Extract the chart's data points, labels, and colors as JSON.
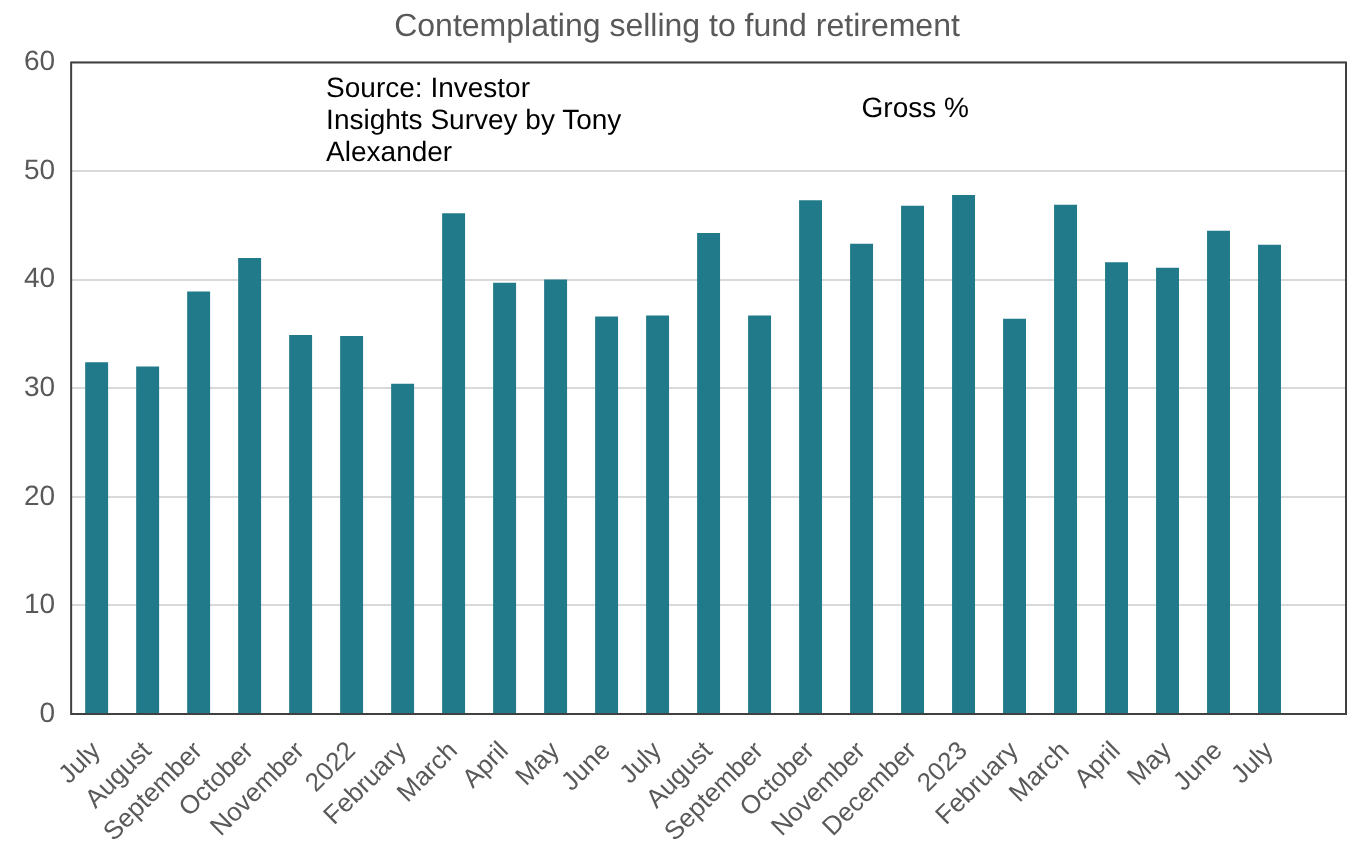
{
  "chart_data": {
    "type": "bar",
    "title": "Contemplating selling to fund retirement",
    "categories": [
      "July",
      "August",
      "September",
      "October",
      "November",
      "2022",
      "February",
      "March",
      "April",
      "May",
      "June",
      "July",
      "August",
      "September",
      "October",
      "November",
      "December",
      "2023",
      "February",
      "March",
      "April",
      "May",
      "June",
      "July",
      null
    ],
    "values": [
      32.4,
      32,
      38.9,
      42,
      34.9,
      34.8,
      30.4,
      46.1,
      39.7,
      40,
      36.6,
      36.7,
      44.3,
      36.7,
      47.3,
      43.3,
      46.8,
      47.8,
      36.4,
      46.9,
      41.6,
      41.1,
      44.5,
      43.2,
      null
    ],
    "color": "#217a8a",
    "ylim": [
      0,
      60
    ],
    "yticks": [
      0,
      10,
      20,
      30,
      40,
      50,
      60
    ],
    "grid": "y",
    "annotations": [
      "Source: Investor Insights Survey by Tony Alexander",
      "Gross %"
    ]
  }
}
